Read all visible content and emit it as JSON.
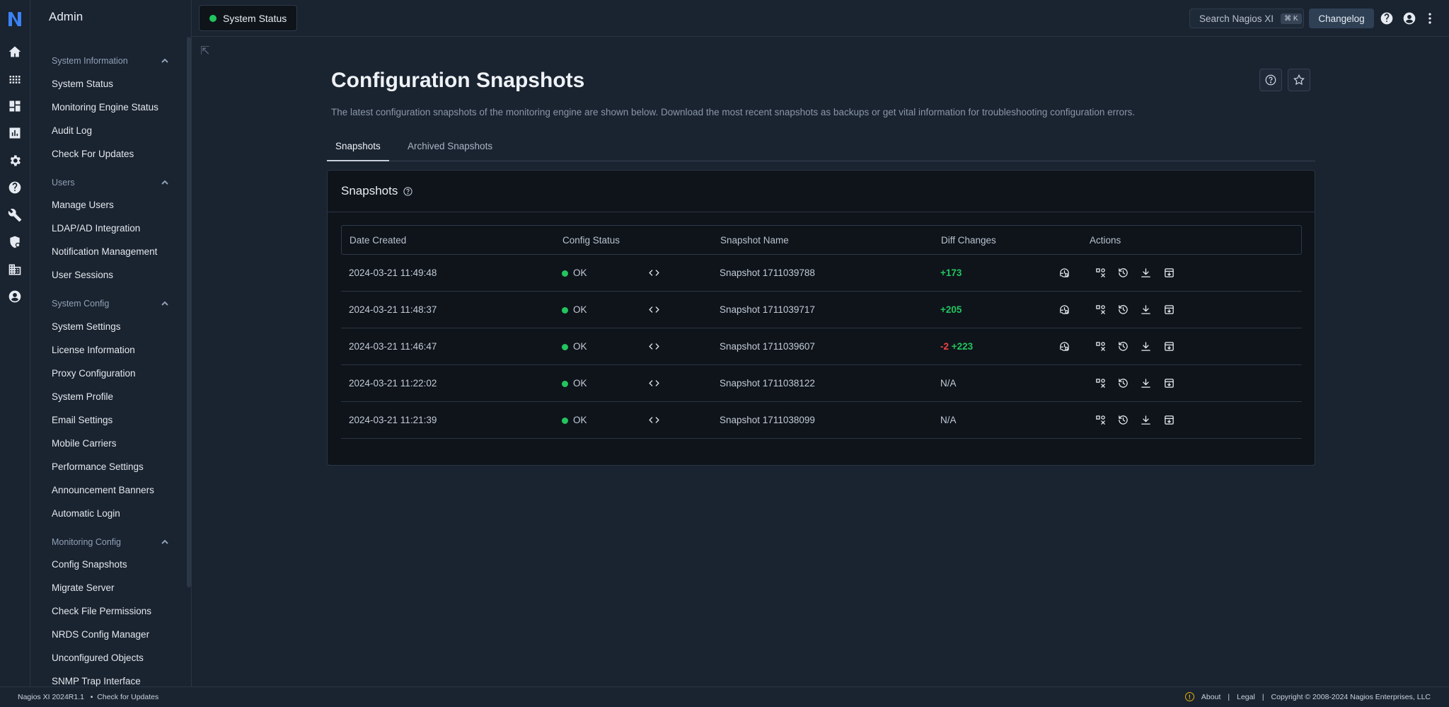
{
  "sidebar": {
    "title": "Admin",
    "sections": [
      {
        "heading": "System Information",
        "items": [
          "System Status",
          "Monitoring Engine Status",
          "Audit Log",
          "Check For Updates"
        ]
      },
      {
        "heading": "Users",
        "items": [
          "Manage Users",
          "LDAP/AD Integration",
          "Notification Management",
          "User Sessions"
        ]
      },
      {
        "heading": "System Config",
        "items": [
          "System Settings",
          "License Information",
          "Proxy Configuration",
          "System Profile",
          "Email Settings",
          "Mobile Carriers",
          "Performance Settings",
          "Announcement Banners",
          "Automatic Login"
        ]
      },
      {
        "heading": "Monitoring Config",
        "items": [
          "Config Snapshots",
          "Migrate Server",
          "Check File Permissions",
          "NRDS Config Manager",
          "Unconfigured Objects",
          "SNMP Trap Interface"
        ]
      }
    ]
  },
  "topbar": {
    "status_label": "System Status",
    "search_label": "Search Nagios XI",
    "search_shortcut": "⌘ K",
    "changelog_label": "Changelog"
  },
  "page": {
    "title": "Configuration Snapshots",
    "description": "The latest configuration snapshots of the monitoring engine are shown below. Download the most recent snapshots as backups or get vital information for troubleshooting configuration errors.",
    "tabs": [
      "Snapshots",
      "Archived Snapshots"
    ]
  },
  "card": {
    "title": "Snapshots",
    "columns": [
      "Date Created",
      "Config Status",
      "Snapshot Name",
      "Diff Changes",
      "Actions"
    ],
    "rows": [
      {
        "date": "2024-03-21 11:49:48",
        "status": "OK",
        "name": "Snapshot 1711039788",
        "minus": "",
        "plus": "+173",
        "na": "",
        "has_diff_icon": true
      },
      {
        "date": "2024-03-21 11:48:37",
        "status": "OK",
        "name": "Snapshot 1711039717",
        "minus": "",
        "plus": "+205",
        "na": "",
        "has_diff_icon": true
      },
      {
        "date": "2024-03-21 11:46:47",
        "status": "OK",
        "name": "Snapshot 1711039607",
        "minus": "-2",
        "plus": "+223",
        "na": "",
        "has_diff_icon": true
      },
      {
        "date": "2024-03-21 11:22:02",
        "status": "OK",
        "name": "Snapshot 1711038122",
        "minus": "",
        "plus": "",
        "na": "N/A",
        "has_diff_icon": false
      },
      {
        "date": "2024-03-21 11:21:39",
        "status": "OK",
        "name": "Snapshot 1711038099",
        "minus": "",
        "plus": "",
        "na": "N/A",
        "has_diff_icon": false
      }
    ]
  },
  "footer": {
    "version": "Nagios XI 2024R1.1",
    "separator": "•",
    "check_updates": "Check for Updates",
    "about": "About",
    "legal": "Legal",
    "divider": "|",
    "copyright": "Copyright © 2008-2024 Nagios Enterprises, LLC"
  },
  "colors": {
    "accent_green": "#22c55e",
    "diff_red": "#ef4444",
    "brand_blue": "#2f6fed"
  }
}
